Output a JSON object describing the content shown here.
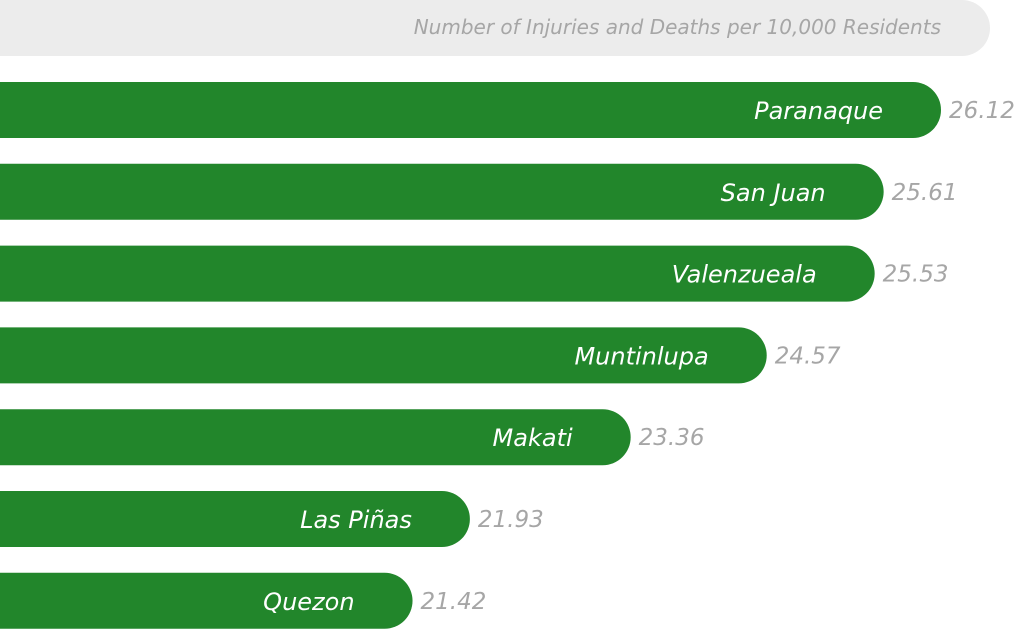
{
  "colors": {
    "bar": "#22862b",
    "header_bg": "#ececec",
    "header_text": "#a6a6a6",
    "value_text": "#a6a6a6",
    "bar_text": "#ffffff"
  },
  "chart_data": {
    "type": "bar",
    "orientation": "horizontal",
    "header": "Number of Injuries and Deaths per 10,000 Residents",
    "categories": [
      "Paranaque",
      "San Juan",
      "Valenzueala",
      "Muntinlupa",
      "Makati",
      "Las Piñas",
      "Quezon"
    ],
    "values": [
      26.12,
      25.61,
      25.53,
      24.57,
      23.36,
      21.93,
      21.42
    ],
    "value_labels": [
      "26.12",
      "25.61",
      "25.53",
      "24.57",
      "23.36",
      "21.93",
      "21.42"
    ],
    "sort": "descending",
    "grid": false,
    "legend": "none"
  }
}
